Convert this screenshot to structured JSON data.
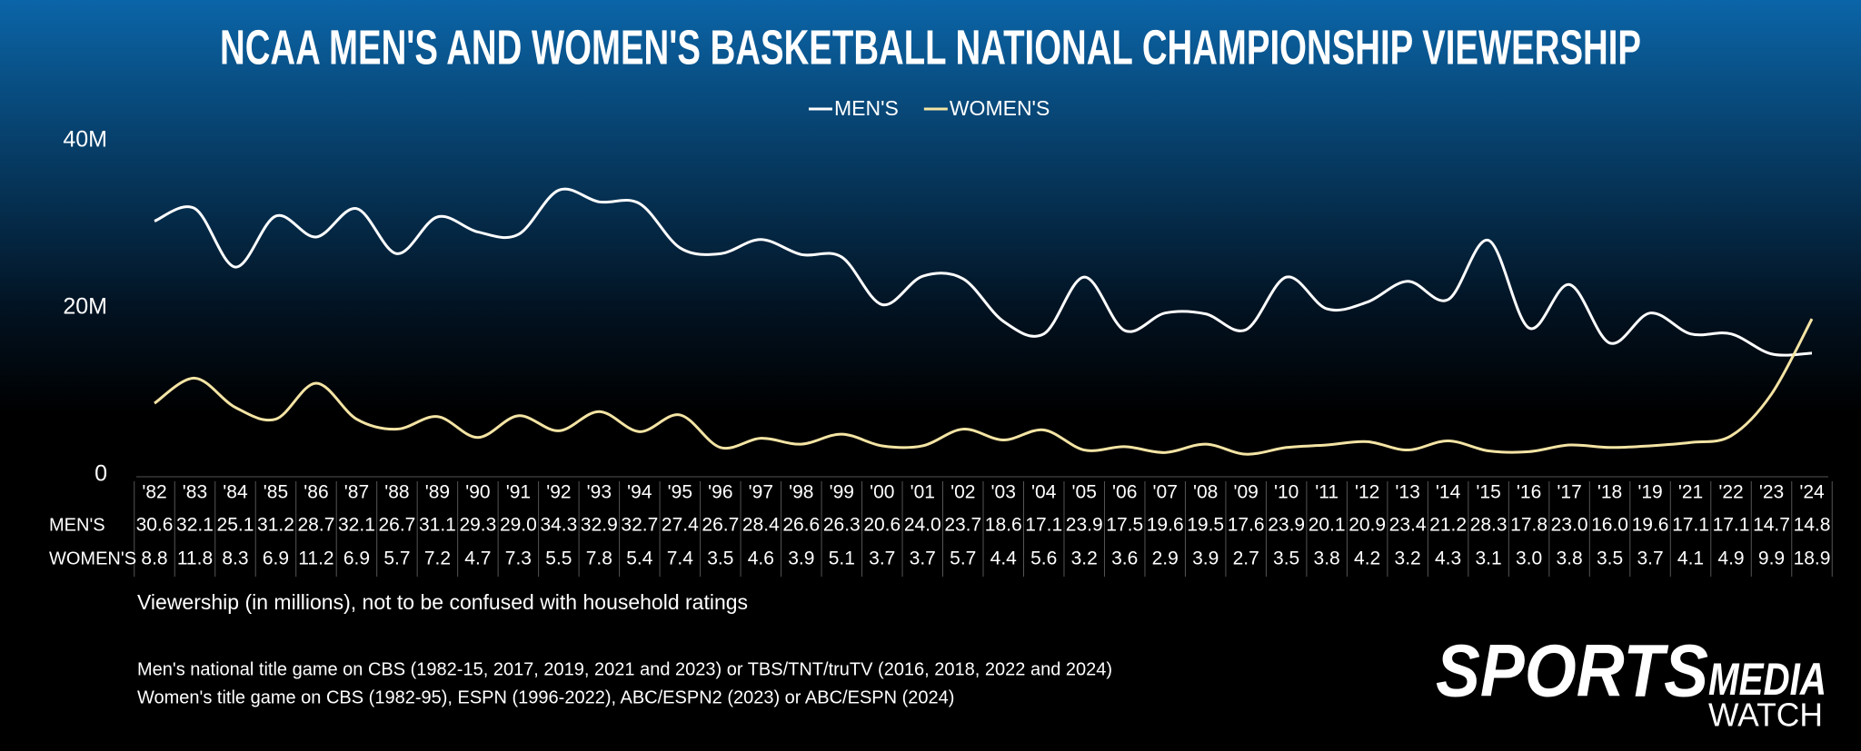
{
  "chart_data": {
    "type": "line",
    "title": "NCAA MEN'S AND WOMEN'S BASKETBALL NATIONAL CHAMPIONSHIP VIEWERSHIP",
    "categories": [
      "'82",
      "'83",
      "'84",
      "'85",
      "'86",
      "'87",
      "'88",
      "'89",
      "'90",
      "'91",
      "'92",
      "'93",
      "'94",
      "'95",
      "'96",
      "'97",
      "'98",
      "'99",
      "'00",
      "'01",
      "'02",
      "'03",
      "'04",
      "'05",
      "'06",
      "'07",
      "'08",
      "'09",
      "'10",
      "'11",
      "'12",
      "'13",
      "'14",
      "'15",
      "'16",
      "'17",
      "'18",
      "'19",
      "'21",
      "'22",
      "'23",
      "'24"
    ],
    "series": [
      {
        "name": "MEN'S",
        "color": "#ffffff",
        "values": [
          30.6,
          32.1,
          25.1,
          31.2,
          28.7,
          32.1,
          26.7,
          31.1,
          29.3,
          29.0,
          34.3,
          32.9,
          32.7,
          27.4,
          26.7,
          28.4,
          26.6,
          26.3,
          20.6,
          24.0,
          23.7,
          18.6,
          17.1,
          23.9,
          17.5,
          19.6,
          19.5,
          17.6,
          23.9,
          20.1,
          20.9,
          23.4,
          21.2,
          28.3,
          17.8,
          23.0,
          16.0,
          19.6,
          17.1,
          17.1,
          14.7,
          14.8
        ],
        "value_labels": [
          "30.6",
          "32.1",
          "25.1",
          "31.2",
          "28.7",
          "32.1",
          "26.7",
          "31.1",
          "29.3",
          "29.0",
          "34.3",
          "32.9",
          "32.7",
          "27.4",
          "26.7",
          "28.4",
          "26.6",
          "26.3",
          "20.6",
          "24.0",
          "23.7",
          "18.6",
          "17.1",
          "23.9",
          "17.5",
          "19.6",
          "19.5",
          "17.6",
          "23.9",
          "20.1",
          "20.9",
          "23.4",
          "21.2",
          "28.3",
          "17.8",
          "23.0",
          "16.0",
          "19.6",
          "17.1",
          "17.1",
          "14.7",
          "14.8"
        ]
      },
      {
        "name": "WOMEN'S",
        "color": "#f4e4a4",
        "values": [
          8.8,
          11.8,
          8.3,
          6.9,
          11.2,
          6.9,
          5.7,
          7.2,
          4.7,
          7.3,
          5.5,
          7.8,
          5.4,
          7.4,
          3.5,
          4.6,
          3.9,
          5.1,
          3.7,
          3.7,
          5.7,
          4.4,
          5.6,
          3.2,
          3.6,
          2.9,
          3.9,
          2.7,
          3.5,
          3.8,
          4.2,
          3.2,
          4.3,
          3.1,
          3.0,
          3.8,
          3.5,
          3.7,
          4.1,
          4.9,
          9.9,
          18.9
        ],
        "value_labels": [
          "8.8",
          "11.8",
          "8.3",
          "6.9",
          "11.2",
          "6.9",
          "5.7",
          "7.2",
          "4.7",
          "7.3",
          "5.5",
          "7.8",
          "5.4",
          "7.4",
          "3.5",
          "4.6",
          "3.9",
          "5.1",
          "3.7",
          "3.7",
          "5.7",
          "4.4",
          "5.6",
          "3.2",
          "3.6",
          "2.9",
          "3.9",
          "2.7",
          "3.5",
          "3.8",
          "4.2",
          "3.2",
          "4.3",
          "3.1",
          "3.0",
          "3.8",
          "3.5",
          "3.7",
          "4.1",
          "4.9",
          "9.9",
          "18.9"
        ]
      }
    ],
    "ylim": [
      0,
      40
    ],
    "yticks": [
      0,
      {
        "value": 20,
        "label": "20M"
      },
      {
        "value": 40,
        "label": "40M"
      }
    ],
    "legend": "top",
    "grid": false,
    "notes": [
      "Viewership (in millions), not to be confused with household ratings",
      "Men's national title game on CBS (1982-15, 2017, 2019, 2021 and 2023) or TBS/TNT/truTV (2016, 2018, 2022 and 2024)",
      "Women's title game on CBS (1982-95), ESPN (1996-2022), ABC/ESPN2 (2023) or ABC/ESPN (2024)"
    ]
  },
  "logo": {
    "line1": "SPORTS",
    "line2": "MEDIA",
    "line3": "WATCH"
  }
}
